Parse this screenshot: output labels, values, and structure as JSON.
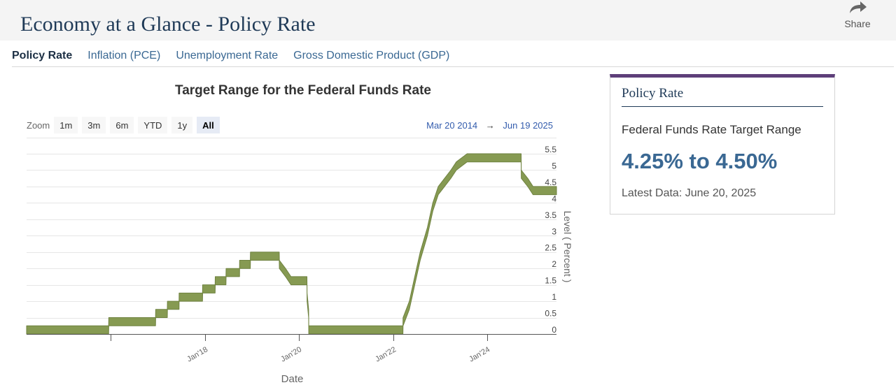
{
  "page": {
    "title": "Economy at a Glance - Policy Rate",
    "share_label": "Share"
  },
  "tabs": [
    {
      "label": "Policy Rate",
      "active": true
    },
    {
      "label": "Inflation (PCE)",
      "active": false
    },
    {
      "label": "Unemployment Rate",
      "active": false
    },
    {
      "label": "Gross Domestic Product (GDP)",
      "active": false
    }
  ],
  "chart_controls": {
    "zoom_label": "Zoom",
    "zoom_buttons": [
      "1m",
      "3m",
      "6m",
      "YTD",
      "1y",
      "All"
    ],
    "zoom_selected": "All",
    "range_from": "Mar 20 2014",
    "range_arrow": "→",
    "range_to": "Jun 19 2025"
  },
  "chart_data": {
    "type": "area",
    "title": "Target Range for the Federal Funds Rate",
    "xlabel": "Date",
    "ylabel": "Level ( Percent )",
    "y_axis_position": "right",
    "ylim": [
      0,
      5.5
    ],
    "yticks": [
      0,
      0.5,
      1,
      1.5,
      2,
      2.5,
      3,
      3.5,
      4,
      4.5,
      5,
      5.5
    ],
    "ytick_labels": [
      "0",
      "0.5",
      "1",
      "1.5",
      "2",
      "2.5",
      "3",
      "3.5",
      "4",
      "4.5",
      "5",
      "5.5"
    ],
    "xlim": [
      "2014-03-20",
      "2025-06-19"
    ],
    "xticks": [
      "2016-01-01",
      "2018-01-01",
      "2020-01-01",
      "2022-01-01",
      "2024-01-01"
    ],
    "xtick_labels": [
      "",
      "Jan'18",
      "Jan'20",
      "Jan'22",
      "Jan'24"
    ],
    "grid": true,
    "legend": "none",
    "color": "#869a52",
    "series": [
      {
        "lower": [
          [
            "2014-03-20",
            0
          ],
          [
            "2015-12-16",
            0
          ],
          [
            "2015-12-17",
            0.25
          ],
          [
            "2016-12-14",
            0.25
          ],
          [
            "2016-12-15",
            0.5
          ],
          [
            "2017-03-15",
            0.5
          ],
          [
            "2017-03-16",
            0.75
          ],
          [
            "2017-06-14",
            0.75
          ],
          [
            "2017-06-15",
            1.0
          ],
          [
            "2017-12-13",
            1.0
          ],
          [
            "2017-12-14",
            1.25
          ],
          [
            "2018-03-21",
            1.25
          ],
          [
            "2018-03-22",
            1.5
          ],
          [
            "2018-06-13",
            1.5
          ],
          [
            "2018-06-14",
            1.75
          ],
          [
            "2018-09-26",
            1.75
          ],
          [
            "2018-09-27",
            2.0
          ],
          [
            "2018-12-19",
            2.0
          ],
          [
            "2018-12-20",
            2.25
          ],
          [
            "2019-07-31",
            2.25
          ],
          [
            "2019-08-01",
            2.0
          ],
          [
            "2019-09-18",
            1.75
          ],
          [
            "2019-10-30",
            1.5
          ],
          [
            "2020-03-02",
            1.5
          ],
          [
            "2020-03-03",
            1.0
          ],
          [
            "2020-03-15",
            0.5
          ],
          [
            "2020-03-16",
            0
          ],
          [
            "2022-03-16",
            0
          ],
          [
            "2022-03-17",
            0.25
          ],
          [
            "2022-05-05",
            0.75
          ],
          [
            "2022-06-16",
            1.5
          ],
          [
            "2022-07-28",
            2.25
          ],
          [
            "2022-09-22",
            3.0
          ],
          [
            "2022-11-03",
            3.75
          ],
          [
            "2022-12-15",
            4.25
          ],
          [
            "2023-02-02",
            4.5
          ],
          [
            "2023-03-23",
            4.75
          ],
          [
            "2023-05-04",
            5.0
          ],
          [
            "2023-07-27",
            5.25
          ],
          [
            "2024-09-18",
            5.25
          ],
          [
            "2024-09-19",
            4.75
          ],
          [
            "2024-11-08",
            4.5
          ],
          [
            "2024-12-19",
            4.25
          ],
          [
            "2025-06-19",
            4.25
          ]
        ],
        "upper": [
          [
            "2014-03-20",
            0.25
          ],
          [
            "2015-12-16",
            0.25
          ],
          [
            "2015-12-17",
            0.5
          ],
          [
            "2016-12-14",
            0.5
          ],
          [
            "2016-12-15",
            0.75
          ],
          [
            "2017-03-15",
            0.75
          ],
          [
            "2017-03-16",
            1.0
          ],
          [
            "2017-06-14",
            1.0
          ],
          [
            "2017-06-15",
            1.25
          ],
          [
            "2017-12-13",
            1.25
          ],
          [
            "2017-12-14",
            1.5
          ],
          [
            "2018-03-21",
            1.5
          ],
          [
            "2018-03-22",
            1.75
          ],
          [
            "2018-06-13",
            1.75
          ],
          [
            "2018-06-14",
            2.0
          ],
          [
            "2018-09-26",
            2.0
          ],
          [
            "2018-09-27",
            2.25
          ],
          [
            "2018-12-19",
            2.25
          ],
          [
            "2018-12-20",
            2.5
          ],
          [
            "2019-07-31",
            2.5
          ],
          [
            "2019-08-01",
            2.25
          ],
          [
            "2019-09-18",
            2.0
          ],
          [
            "2019-10-30",
            1.75
          ],
          [
            "2020-03-02",
            1.75
          ],
          [
            "2020-03-03",
            1.25
          ],
          [
            "2020-03-15",
            0.75
          ],
          [
            "2020-03-16",
            0.25
          ],
          [
            "2022-03-16",
            0.25
          ],
          [
            "2022-03-17",
            0.5
          ],
          [
            "2022-05-05",
            1.0
          ],
          [
            "2022-06-16",
            1.75
          ],
          [
            "2022-07-28",
            2.5
          ],
          [
            "2022-09-22",
            3.25
          ],
          [
            "2022-11-03",
            4.0
          ],
          [
            "2022-12-15",
            4.5
          ],
          [
            "2023-02-02",
            4.75
          ],
          [
            "2023-03-23",
            5.0
          ],
          [
            "2023-05-04",
            5.25
          ],
          [
            "2023-07-27",
            5.5
          ],
          [
            "2024-09-18",
            5.5
          ],
          [
            "2024-09-19",
            5.0
          ],
          [
            "2024-11-08",
            4.75
          ],
          [
            "2024-12-19",
            4.5
          ],
          [
            "2025-06-19",
            4.5
          ]
        ]
      }
    ]
  },
  "card": {
    "header": "Policy Rate",
    "subtitle": "Federal Funds Rate Target Range",
    "value": "4.25% to 4.50%",
    "latest": "Latest Data: June 20, 2025",
    "accent_color": "#5e3f7a"
  }
}
